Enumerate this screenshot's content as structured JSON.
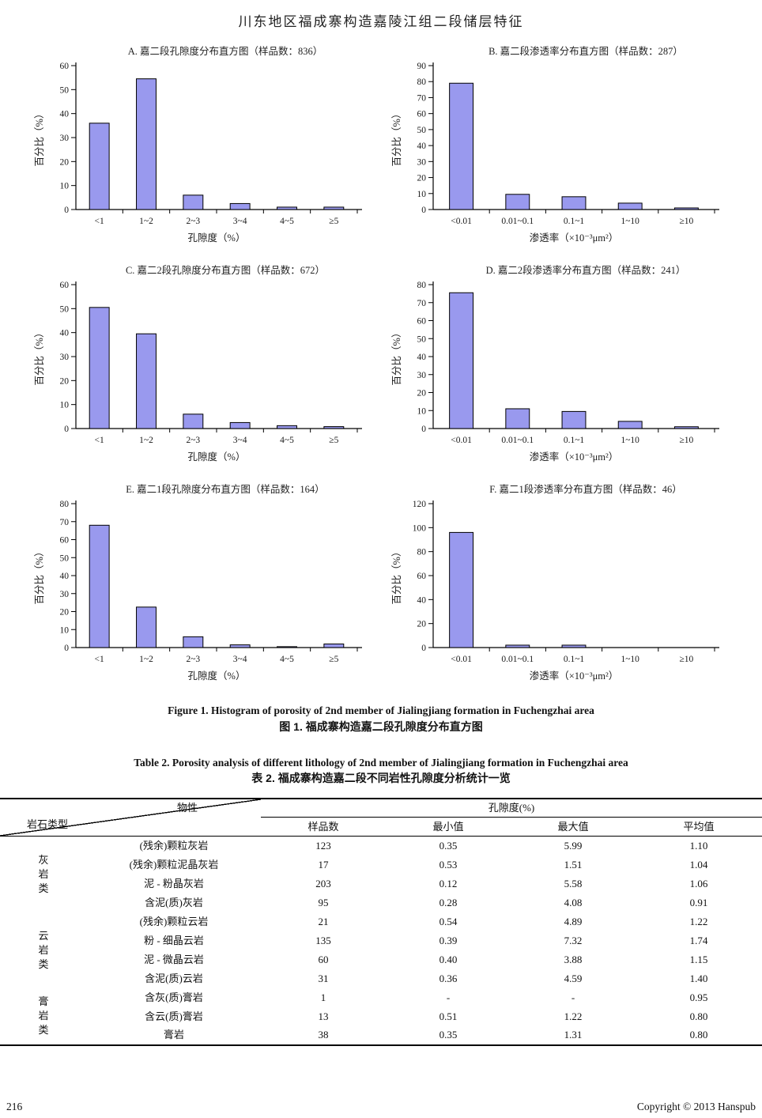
{
  "page": {
    "header_title": "川东地区福成寨构造嘉陵江组二段储层特征",
    "footer": {
      "page_number": "216",
      "copyright": "Copyright © 2013 Hanspub"
    }
  },
  "figure_caption": {
    "en": "Figure 1. Histogram of porosity of 2nd member of Jialingjiang formation in Fuchengzhai area",
    "zh": "图 1. 福成寨构造嘉二段孔隙度分布直方图"
  },
  "chart_data": [
    {
      "type": "bar",
      "title": "A. 嘉二段孔隙度分布直方图（样品数：836）",
      "categories": [
        "<1",
        "1~2",
        "2~3",
        "3~4",
        "4~5",
        "≥5"
      ],
      "values": [
        36,
        54.5,
        6,
        2.5,
        1,
        1
      ],
      "xlabel": "孔隙度（%）",
      "ylabel": "百分比（%）",
      "ylim": [
        0,
        60
      ],
      "ytick_step": 10,
      "grid": false,
      "bar_color": "#9999EE",
      "bar_border": "#000000"
    },
    {
      "type": "bar",
      "title": "B. 嘉二段渗透率分布直方图（样品数：287）",
      "categories": [
        "<0.01",
        "0.01~0.1",
        "0.1~1",
        "1~10",
        "≥10"
      ],
      "values": [
        79,
        9.5,
        8,
        4,
        1
      ],
      "xlabel": "渗透率（×10⁻³μm²）",
      "ylabel": "百分比（%）",
      "ylim": [
        0,
        90
      ],
      "ytick_step": 10,
      "grid": false,
      "bar_color": "#9999EE",
      "bar_border": "#000000"
    },
    {
      "type": "bar",
      "title": "C. 嘉二2段孔隙度分布直方图（样品数：672）",
      "categories": [
        "<1",
        "1~2",
        "2~3",
        "3~4",
        "4~5",
        "≥5"
      ],
      "values": [
        50.5,
        39.5,
        6,
        2.5,
        1.2,
        0.8
      ],
      "xlabel": "孔隙度（%）",
      "ylabel": "百分比（%）",
      "ylim": [
        0,
        60
      ],
      "ytick_step": 10,
      "grid": false,
      "bar_color": "#9999EE",
      "bar_border": "#000000"
    },
    {
      "type": "bar",
      "title": "D. 嘉二2段渗透率分布直方图（样品数：241）",
      "categories": [
        "<0.01",
        "0.01~0.1",
        "0.1~1",
        "1~10",
        "≥10"
      ],
      "values": [
        75.5,
        11,
        9.5,
        4,
        1
      ],
      "xlabel": "渗透率（×10⁻³μm²）",
      "ylabel": "百分比（%）",
      "ylim": [
        0,
        80
      ],
      "ytick_step": 10,
      "grid": false,
      "bar_color": "#9999EE",
      "bar_border": "#000000"
    },
    {
      "type": "bar",
      "title": "E. 嘉二1段孔隙度分布直方图（样品数：164）",
      "categories": [
        "<1",
        "1~2",
        "2~3",
        "3~4",
        "4~5",
        "≥5"
      ],
      "values": [
        68,
        22.5,
        6,
        1.5,
        0.5,
        2
      ],
      "xlabel": "孔隙度（%）",
      "ylabel": "百分比（%）",
      "ylim": [
        0,
        80
      ],
      "ytick_step": 10,
      "grid": false,
      "bar_color": "#9999EE",
      "bar_border": "#000000"
    },
    {
      "type": "bar",
      "title": "F. 嘉二1段渗透率分布直方图（样品数：46）",
      "categories": [
        "<0.01",
        "0.01~0.1",
        "0.1~1",
        "1~10",
        "≥10"
      ],
      "values": [
        96,
        2,
        2,
        0,
        0
      ],
      "xlabel": "渗透率（×10⁻³μm²）",
      "ylabel": "百分比（%）",
      "ylim": [
        0,
        120
      ],
      "ytick_step": 20,
      "grid": false,
      "bar_color": "#9999EE",
      "bar_border": "#000000"
    }
  ],
  "table": {
    "caption_en": "Table 2. Porosity analysis of different lithology of 2nd member of Jialingjiang formation in Fuchengzhai area",
    "caption_zh": "表 2. 福成寨构造嘉二段不同岩性孔隙度分析统计一览",
    "corner": {
      "top_label": "物性",
      "bottom_label": "岩石类型"
    },
    "group_header": "孔隙度(%)",
    "columns": [
      "样品数",
      "最小值",
      "最大值",
      "平均值"
    ],
    "groups": [
      {
        "label": "灰岩类",
        "rows": [
          {
            "name": "(残余)颗粒灰岩",
            "values": [
              "123",
              "0.35",
              "5.99",
              "1.10"
            ]
          },
          {
            "name": "(残余)颗粒泥晶灰岩",
            "values": [
              "17",
              "0.53",
              "1.51",
              "1.04"
            ]
          },
          {
            "name": "泥 - 粉晶灰岩",
            "values": [
              "203",
              "0.12",
              "5.58",
              "1.06"
            ]
          },
          {
            "name": "含泥(质)灰岩",
            "values": [
              "95",
              "0.28",
              "4.08",
              "0.91"
            ]
          }
        ]
      },
      {
        "label": "云岩类",
        "rows": [
          {
            "name": "(残余)颗粒云岩",
            "values": [
              "21",
              "0.54",
              "4.89",
              "1.22"
            ]
          },
          {
            "name": "粉 - 细晶云岩",
            "values": [
              "135",
              "0.39",
              "7.32",
              "1.74"
            ]
          },
          {
            "name": "泥 - 微晶云岩",
            "values": [
              "60",
              "0.40",
              "3.88",
              "1.15"
            ]
          },
          {
            "name": "含泥(质)云岩",
            "values": [
              "31",
              "0.36",
              "4.59",
              "1.40"
            ]
          }
        ]
      },
      {
        "label": "膏岩类",
        "rows": [
          {
            "name": "含灰(质)膏岩",
            "values": [
              "1",
              "-",
              "-",
              "0.95"
            ]
          },
          {
            "name": "含云(质)膏岩",
            "values": [
              "13",
              "0.51",
              "1.22",
              "0.80"
            ]
          },
          {
            "name": "膏岩",
            "values": [
              "38",
              "0.35",
              "1.31",
              "0.80"
            ]
          }
        ]
      }
    ]
  }
}
